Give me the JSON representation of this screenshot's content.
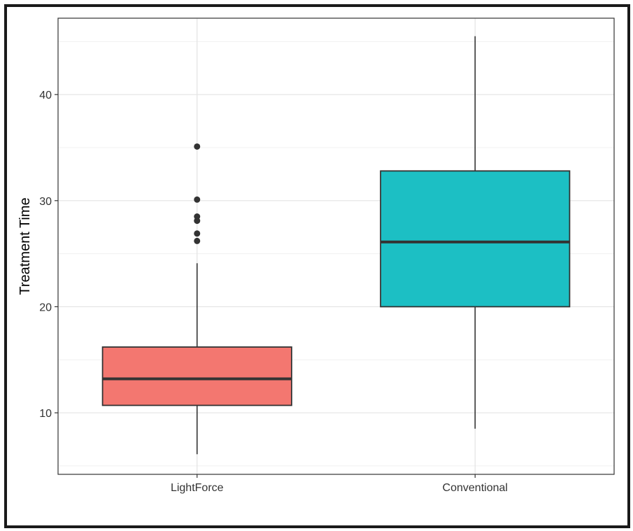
{
  "chart_data": {
    "type": "box",
    "title": "",
    "xlabel": "",
    "ylabel": "Treatment Time",
    "ylim": [
      4.2,
      47.2
    ],
    "y_ticks": [
      10,
      20,
      30,
      40
    ],
    "y_tick_labels": [
      "10",
      "20",
      "30",
      "40"
    ],
    "grid": true,
    "legend": "none",
    "categories": [
      "LightForce",
      "Conventional"
    ],
    "boxes": [
      {
        "category": "LightForce",
        "color": "#F37770",
        "whisker_low": 6.1,
        "q1": 10.7,
        "median": 13.2,
        "q3": 16.2,
        "whisker_high": 24.1,
        "outliers": [
          26.2,
          26.9,
          28.1,
          28.5,
          30.1,
          35.1
        ]
      },
      {
        "category": "Conventional",
        "color": "#1CBFC4",
        "whisker_low": 8.5,
        "q1": 20.0,
        "median": 26.1,
        "q3": 32.8,
        "whisker_high": 45.5,
        "outliers": []
      }
    ]
  }
}
